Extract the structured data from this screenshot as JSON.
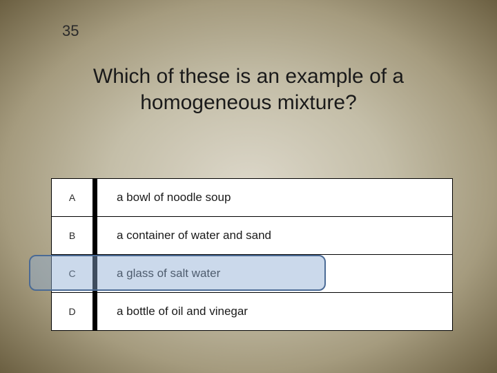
{
  "question": {
    "number": "35",
    "text": "Which of these is an example of a homogeneous mixture?"
  },
  "answers": [
    {
      "letter": "A",
      "text": "a bowl of noodle soup"
    },
    {
      "letter": "B",
      "text": "a container of water and sand"
    },
    {
      "letter": "C",
      "text": "a glass of salt water"
    },
    {
      "letter": "D",
      "text": "a bottle of oil and vinegar"
    }
  ],
  "highlighted_index": 2,
  "styling": {
    "background_gradient_inner": "#dcd7c9",
    "background_gradient_outer": "#6b5f41",
    "highlight_fill": "rgba(140, 170, 210, 0.45)",
    "highlight_border": "#4a6a95",
    "table_bg": "#ffffff",
    "border_color": "#000000",
    "question_fontsize": 30,
    "number_fontsize": 22,
    "letter_fontsize": 14,
    "answer_fontsize": 17
  }
}
